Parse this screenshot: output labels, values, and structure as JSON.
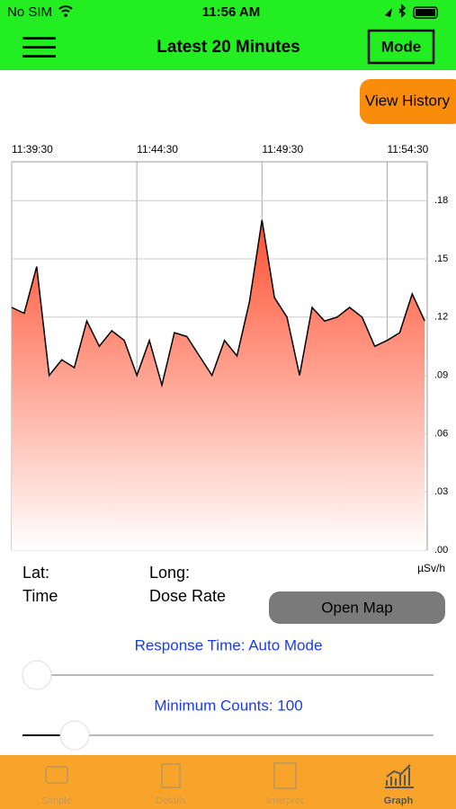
{
  "status_bar": {
    "carrier": "No SIM",
    "time": "11:56 AM"
  },
  "nav_bar": {
    "title": "Latest 20 Minutes",
    "mode_button": "Mode"
  },
  "view_history_button": "View History",
  "chart_data": {
    "type": "line",
    "x": [
      "11:39:30",
      "11:40:00",
      "11:40:30",
      "11:41:00",
      "11:41:30",
      "11:42:00",
      "11:42:30",
      "11:43:00",
      "11:43:30",
      "11:44:00",
      "11:44:30",
      "11:45:00",
      "11:45:30",
      "11:46:00",
      "11:46:30",
      "11:47:00",
      "11:47:30",
      "11:48:00",
      "11:48:30",
      "11:49:00",
      "11:49:30",
      "11:50:00",
      "11:50:30",
      "11:51:00",
      "11:51:30",
      "11:52:00",
      "11:52:30",
      "11:53:00",
      "11:53:30",
      "11:54:00",
      "11:54:30",
      "11:55:00",
      "11:55:30",
      "11:56:00"
    ],
    "series": [
      {
        "color": "#000000",
        "values": [
          0.125,
          0.122,
          0.146,
          0.09,
          0.098,
          0.094,
          0.118,
          0.105,
          0.113,
          0.108,
          0.09,
          0.108,
          0.085,
          0.112,
          0.11,
          0.1,
          0.09,
          0.108,
          0.1,
          0.128,
          0.17,
          0.13,
          0.12,
          0.09,
          0.125,
          0.118,
          0.12,
          0.125,
          0.12,
          0.105,
          0.108,
          0.112,
          0.132,
          0.118
        ]
      }
    ],
    "xlim": [
      "11:39:30",
      "11:56:06"
    ],
    "xticks": [
      "11:39:30",
      "11:44:30",
      "11:49:30",
      "11:54:30"
    ],
    "ylim": [
      0,
      0.2
    ],
    "yticks": [
      {
        "value": 0.18,
        "label": ".18"
      },
      {
        "value": 0.15,
        "label": ".15"
      },
      {
        "value": 0.12,
        "label": ".12"
      },
      {
        "value": 0.09,
        "label": ".09"
      },
      {
        "value": 0.06,
        "label": ".06"
      },
      {
        "value": 0.03,
        "label": ".03"
      },
      {
        "value": 0,
        "label": ".00"
      }
    ],
    "y_unit": "µSv/h",
    "grid": true,
    "fill_gradient": [
      "#ff5030",
      "#ffffff"
    ]
  },
  "location": {
    "lat_label": "Lat:",
    "long_label": "Long:",
    "time_label": "Time",
    "dose_rate_label": "Dose Rate"
  },
  "open_map_button": "Open Map",
  "response_time_label": "Response Time: Auto Mode",
  "minimum_counts_label": "Minimum Counts: 100",
  "tabs": [
    "Simple",
    "Details",
    "Interpret",
    "Graph"
  ]
}
